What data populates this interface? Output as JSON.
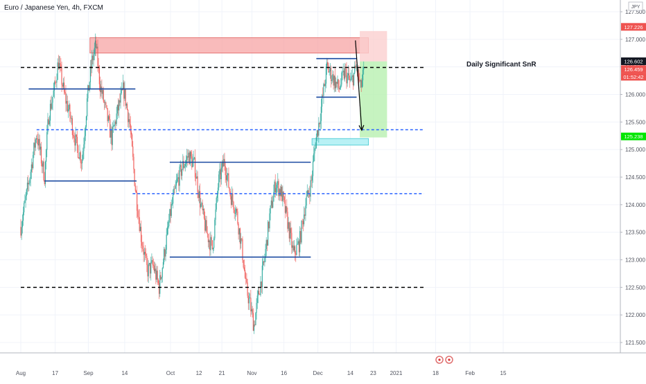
{
  "header": {
    "title": "Euro / Japanese Yen, 4h, FXCM"
  },
  "currency_badge": "JPY",
  "annotation": "Daily Significant SnR",
  "price_badges": [
    {
      "label": "127.226",
      "value": 127.226,
      "color": "#ef5350"
    },
    {
      "label": "126.602",
      "value": 126.602,
      "color": "#131722"
    },
    {
      "label": "126.459",
      "value": 126.459,
      "color": "#ef5350"
    },
    {
      "label": "01:52:42",
      "value": 126.37,
      "color": "#ef5350"
    },
    {
      "label": "125.238",
      "value": 125.238,
      "color": "#00e600"
    }
  ],
  "colors": {
    "up": "#26a69a",
    "down": "#ef5350",
    "level_line": "#1848a0",
    "dashed_blue": "#2962ff",
    "dashed_black": "#000000",
    "supply_zone": "#f7a4a4",
    "demand_zone": "#a6eef2",
    "target_zone": "#b8f0b0",
    "stop_zone": "#fbd0d0"
  },
  "chart_data": {
    "type": "candlestick",
    "instrument": "Euro / Japanese Yen",
    "interval": "4h",
    "source": "FXCM",
    "x_axis_labels": [
      "Aug",
      "17",
      "Sep",
      "14",
      "Oct",
      "12",
      "21",
      "Nov",
      "16",
      "Dec",
      "14",
      "23",
      "2021",
      "18",
      "Feb",
      "15"
    ],
    "x_axis_positions": [
      0.0,
      0.087,
      0.171,
      0.263,
      0.379,
      0.451,
      0.509,
      0.585,
      0.666,
      0.752,
      0.834,
      0.892,
      0.95,
      1.05,
      1.137,
      1.221
    ],
    "y_axis_labels": [
      "127.500",
      "127.000",
      "126.500",
      "126.000",
      "125.500",
      "125.000",
      "124.500",
      "124.000",
      "123.500",
      "123.000",
      "122.500",
      "122.000",
      "121.500"
    ],
    "ylim": [
      121.35,
      127.75
    ],
    "price_path": [
      [
        0.0,
        123.6
      ],
      [
        0.02,
        124.4
      ],
      [
        0.04,
        125.3
      ],
      [
        0.06,
        124.5
      ],
      [
        0.07,
        125.6
      ],
      [
        0.085,
        126.1
      ],
      [
        0.095,
        126.6
      ],
      [
        0.11,
        126.0
      ],
      [
        0.125,
        125.6
      ],
      [
        0.14,
        125.1
      ],
      [
        0.155,
        124.8
      ],
      [
        0.168,
        125.9
      ],
      [
        0.18,
        126.6
      ],
      [
        0.19,
        126.9
      ],
      [
        0.2,
        126.2
      ],
      [
        0.215,
        125.7
      ],
      [
        0.23,
        125.2
      ],
      [
        0.245,
        125.7
      ],
      [
        0.26,
        126.1
      ],
      [
        0.275,
        125.5
      ],
      [
        0.29,
        124.3
      ],
      [
        0.305,
        123.4
      ],
      [
        0.32,
        122.8
      ],
      [
        0.335,
        122.9
      ],
      [
        0.35,
        122.5
      ],
      [
        0.365,
        123.2
      ],
      [
        0.38,
        123.9
      ],
      [
        0.395,
        124.4
      ],
      [
        0.41,
        124.7
      ],
      [
        0.425,
        124.9
      ],
      [
        0.44,
        124.7
      ],
      [
        0.455,
        124.0
      ],
      [
        0.47,
        123.5
      ],
      [
        0.485,
        123.2
      ],
      [
        0.5,
        124.4
      ],
      [
        0.515,
        124.8
      ],
      [
        0.53,
        124.2
      ],
      [
        0.545,
        123.9
      ],
      [
        0.56,
        123.2
      ],
      [
        0.57,
        122.5
      ],
      [
        0.58,
        122.2
      ],
      [
        0.59,
        121.8
      ],
      [
        0.6,
        122.3
      ],
      [
        0.615,
        122.9
      ],
      [
        0.63,
        123.8
      ],
      [
        0.645,
        124.4
      ],
      [
        0.66,
        124.2
      ],
      [
        0.675,
        123.7
      ],
      [
        0.69,
        123.1
      ],
      [
        0.705,
        123.3
      ],
      [
        0.72,
        124.0
      ],
      [
        0.735,
        124.4
      ],
      [
        0.745,
        125.1
      ],
      [
        0.755,
        125.5
      ],
      [
        0.765,
        126.0
      ],
      [
        0.775,
        126.5
      ],
      [
        0.79,
        126.3
      ],
      [
        0.805,
        126.1
      ],
      [
        0.82,
        126.4
      ],
      [
        0.835,
        126.2
      ],
      [
        0.85,
        126.5
      ],
      [
        0.86,
        126.1
      ],
      [
        0.868,
        126.4
      ]
    ],
    "horizontal_levels": [
      {
        "style": "dashed",
        "color": "black",
        "y": 126.49,
        "x_start": 0.0,
        "x_end": 1.02
      },
      {
        "style": "dashed",
        "color": "black",
        "y": 122.5,
        "x_start": 0.0,
        "x_end": 1.02
      },
      {
        "style": "dashed",
        "color": "blue",
        "y": 125.36,
        "x_start": 0.04,
        "x_end": 1.02
      },
      {
        "style": "dashed",
        "color": "blue",
        "y": 124.2,
        "x_start": 0.283,
        "x_end": 1.02
      },
      {
        "style": "solid",
        "color": "navy",
        "y": 126.1,
        "x_start": 0.02,
        "x_end": 0.29
      },
      {
        "style": "solid",
        "color": "navy",
        "y": 124.43,
        "x_start": 0.06,
        "x_end": 0.293
      },
      {
        "style": "solid",
        "color": "navy",
        "y": 124.77,
        "x_start": 0.377,
        "x_end": 0.734
      },
      {
        "style": "solid",
        "color": "navy",
        "y": 123.05,
        "x_start": 0.377,
        "x_end": 0.734
      },
      {
        "style": "solid",
        "color": "navy",
        "y": 126.65,
        "x_start": 0.748,
        "x_end": 0.85
      },
      {
        "style": "solid",
        "color": "navy",
        "y": 125.95,
        "x_start": 0.748,
        "x_end": 0.85
      }
    ],
    "zones": [
      {
        "kind": "supply",
        "x_start": 0.175,
        "x_end": 0.88,
        "y_low": 126.75,
        "y_high": 127.03
      },
      {
        "kind": "demand",
        "x_start": 0.737,
        "x_end": 0.88,
        "y_low": 125.08,
        "y_high": 125.2
      },
      {
        "kind": "stop",
        "x_start": 0.858,
        "x_end": 0.927,
        "y_low": 126.6,
        "y_high": 127.15
      },
      {
        "kind": "target",
        "x_start": 0.858,
        "x_end": 0.927,
        "y_low": 125.22,
        "y_high": 126.6
      }
    ],
    "arrow": {
      "from": [
        0.847,
        126.98
      ],
      "to": [
        0.863,
        125.35
      ]
    }
  }
}
